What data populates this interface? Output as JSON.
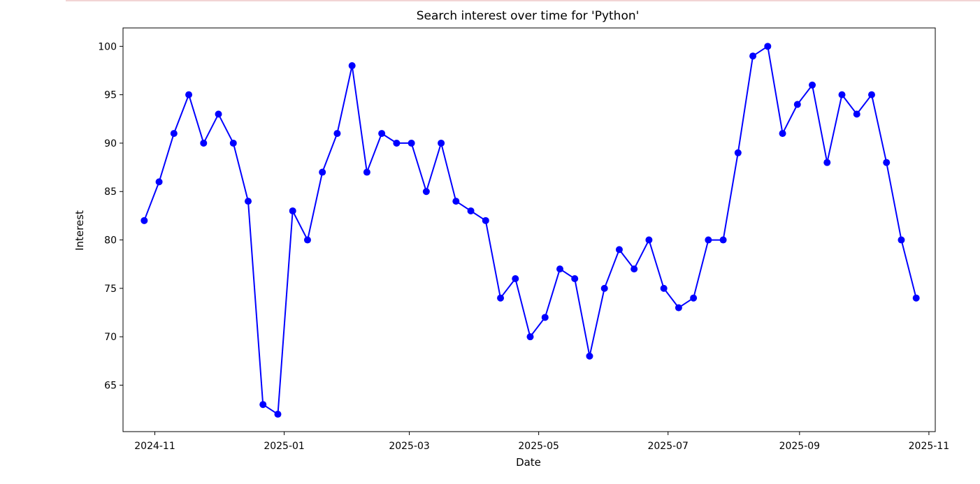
{
  "chart_data": {
    "type": "line",
    "title": "Search interest over time for 'Python'",
    "xlabel": "Date",
    "ylabel": "Interest",
    "x_axis_type": "date",
    "xlim": [
      "2024-10-17",
      "2025-11-04"
    ],
    "ylim": [
      60.2,
      101.9
    ],
    "y_ticks": [
      65,
      70,
      75,
      80,
      85,
      90,
      95,
      100
    ],
    "x_ticks": [
      {
        "date": "2024-11-01",
        "label": "2024-11"
      },
      {
        "date": "2025-01-01",
        "label": "2025-01"
      },
      {
        "date": "2025-03-01",
        "label": "2025-03"
      },
      {
        "date": "2025-05-01",
        "label": "2025-05"
      },
      {
        "date": "2025-07-01",
        "label": "2025-07"
      },
      {
        "date": "2025-09-01",
        "label": "2025-09"
      },
      {
        "date": "2025-11-01",
        "label": "2025-11"
      }
    ],
    "grid": false,
    "line_color": "#0000ff",
    "marker": "circle",
    "series": [
      {
        "x": [
          "2024-10-27",
          "2024-11-03",
          "2024-11-10",
          "2024-11-17",
          "2024-11-24",
          "2024-12-01",
          "2024-12-08",
          "2024-12-15",
          "2024-12-22",
          "2024-12-29",
          "2025-01-05",
          "2025-01-12",
          "2025-01-19",
          "2025-01-26",
          "2025-02-02",
          "2025-02-09",
          "2025-02-16",
          "2025-02-23",
          "2025-03-02",
          "2025-03-09",
          "2025-03-16",
          "2025-03-23",
          "2025-03-30",
          "2025-04-06",
          "2025-04-13",
          "2025-04-20",
          "2025-04-27",
          "2025-05-04",
          "2025-05-11",
          "2025-05-18",
          "2025-05-25",
          "2025-06-01",
          "2025-06-08",
          "2025-06-15",
          "2025-06-22",
          "2025-06-29",
          "2025-07-06",
          "2025-07-13",
          "2025-07-20",
          "2025-07-27",
          "2025-08-03",
          "2025-08-10",
          "2025-08-17",
          "2025-08-24",
          "2025-08-31",
          "2025-09-07",
          "2025-09-14",
          "2025-09-21",
          "2025-09-28",
          "2025-10-05",
          "2025-10-12",
          "2025-10-19",
          "2025-10-26"
        ],
        "y": [
          82,
          86,
          91,
          95,
          90,
          93,
          90,
          84,
          63,
          62,
          83,
          80,
          87,
          91,
          98,
          87,
          91,
          90,
          90,
          85,
          90,
          84,
          83,
          82,
          74,
          76,
          70,
          72,
          77,
          76,
          68,
          75,
          79,
          77,
          80,
          75,
          73,
          74,
          80,
          80,
          89,
          99,
          100,
          91,
          94,
          96,
          88,
          95,
          93,
          95,
          88,
          80,
          74
        ]
      }
    ]
  }
}
